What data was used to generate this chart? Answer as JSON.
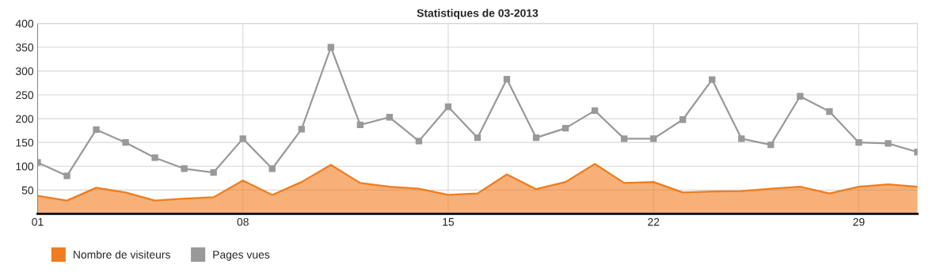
{
  "chart_data": {
    "type": "line",
    "title": "Statistiques de 03-2013",
    "x": [
      1,
      2,
      3,
      4,
      5,
      6,
      7,
      8,
      9,
      10,
      11,
      12,
      13,
      14,
      15,
      16,
      17,
      18,
      19,
      20,
      21,
      22,
      23,
      24,
      25,
      26,
      27,
      28,
      29,
      30,
      31
    ],
    "series": [
      {
        "name": "Nombre de visiteurs",
        "type": "area",
        "color": "#f07c1e",
        "marker": "none",
        "values": [
          38,
          28,
          55,
          45,
          28,
          32,
          35,
          70,
          40,
          67,
          103,
          65,
          57,
          53,
          40,
          43,
          83,
          52,
          67,
          105,
          65,
          67,
          45,
          47,
          48,
          53,
          57,
          43,
          57,
          62,
          57
        ]
      },
      {
        "name": "Pages vues",
        "type": "line",
        "color": "#999999",
        "marker": "square",
        "values": [
          108,
          80,
          177,
          150,
          118,
          95,
          87,
          158,
          95,
          178,
          350,
          187,
          203,
          153,
          225,
          160,
          283,
          160,
          180,
          217,
          158,
          158,
          198,
          282,
          158,
          145,
          247,
          215,
          150,
          148,
          130
        ]
      }
    ],
    "xlim": [
      1,
      31
    ],
    "xticks": [
      {
        "value": 1,
        "label": "01"
      },
      {
        "value": 8,
        "label": "08"
      },
      {
        "value": 15,
        "label": "15"
      },
      {
        "value": 22,
        "label": "22"
      },
      {
        "value": 29,
        "label": "29"
      }
    ],
    "ylim": [
      0,
      400
    ],
    "yticks": [
      50,
      100,
      150,
      200,
      250,
      300,
      350,
      400
    ],
    "grid": true,
    "legend": "bottom left"
  }
}
